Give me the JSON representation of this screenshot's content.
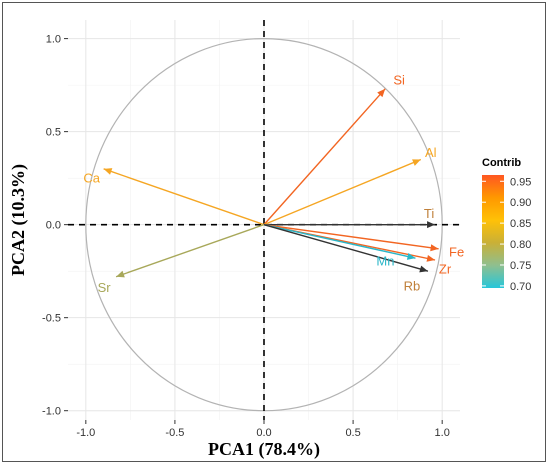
{
  "chart_data": {
    "type": "scatter",
    "subtype": "pca-correlation-circle",
    "title": "",
    "xlabel": "PCA1 (78.4%)",
    "ylabel": "PCA2 (10.3%)",
    "xlim": [
      -1.1,
      1.1
    ],
    "ylim": [
      -1.05,
      1.1
    ],
    "x_ticks": [
      -1.0,
      -0.5,
      0.0,
      0.5,
      1.0
    ],
    "x_tick_labels": [
      "-1.0",
      "-0.5",
      "0.0",
      "0.5",
      "1.0"
    ],
    "y_ticks": [
      -1.0,
      -0.5,
      0.0,
      0.5,
      1.0
    ],
    "y_tick_labels": [
      "-1.0",
      "-0.5",
      "0.0",
      "0.5",
      "1.0"
    ],
    "grid": true,
    "unit_circle": true,
    "reference_lines": {
      "x": 0,
      "y": 0,
      "style": "dashed"
    },
    "variables": [
      {
        "name": "Si",
        "x": 0.68,
        "y": 0.73,
        "contrib": 0.96,
        "color": "#f26522"
      },
      {
        "name": "Al",
        "x": 0.88,
        "y": 0.35,
        "contrib": 0.84,
        "color": "#f5a623"
      },
      {
        "name": "Ca",
        "x": -0.9,
        "y": 0.3,
        "contrib": 0.84,
        "color": "#f5a623"
      },
      {
        "name": "Ti",
        "x": 0.96,
        "y": 0.0,
        "contrib": 0.92,
        "color": "#333333"
      },
      {
        "name": "Fe",
        "x": 0.98,
        "y": -0.13,
        "contrib": 0.96,
        "color": "#f26522"
      },
      {
        "name": "Zr",
        "x": 0.96,
        "y": -0.19,
        "contrib": 0.94,
        "color": "#f26522"
      },
      {
        "name": "Mn",
        "x": 0.85,
        "y": -0.18,
        "contrib": 0.72,
        "color": "#29b6c8"
      },
      {
        "name": "Rb",
        "x": 0.92,
        "y": -0.25,
        "contrib": 0.84,
        "color": "#333333"
      },
      {
        "name": "Sr",
        "x": -0.83,
        "y": -0.28,
        "contrib": 0.78,
        "color": "#a8a85a"
      }
    ],
    "legend": {
      "title": "Contrib",
      "position": "right",
      "type": "colorbar",
      "ticks": [
        "0.95",
        "0.90",
        "0.85",
        "0.80",
        "0.75",
        "0.70"
      ],
      "tick_values": [
        0.95,
        0.9,
        0.85,
        0.8,
        0.75,
        0.7
      ],
      "range": [
        0.695,
        0.965
      ],
      "colors": [
        "#26c6da",
        "#8fbf8f",
        "#c9b037",
        "#ffc107",
        "#ff9800",
        "#ff5722"
      ]
    }
  }
}
